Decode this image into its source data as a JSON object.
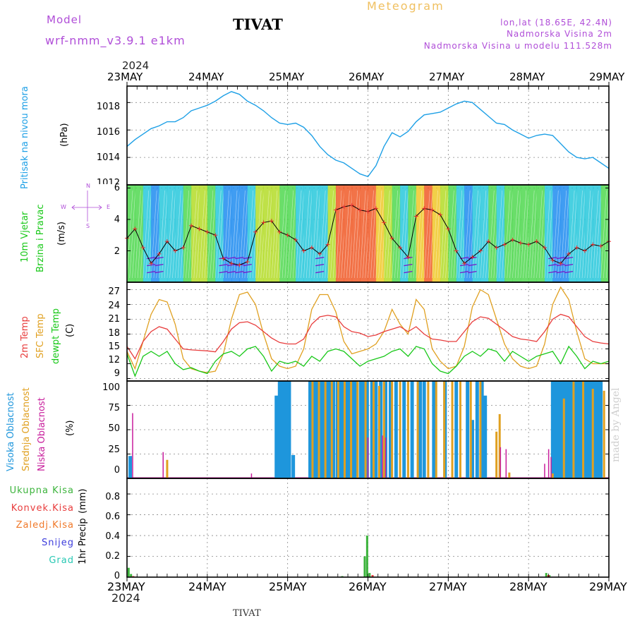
{
  "header": {
    "model_label": "Model",
    "model_name": "wrf-nmm_v3.9.1  e1km",
    "station": "TIVAT",
    "meteogram_label": "Meteogram",
    "coords": "lon,lat (18.65E, 42.4N)",
    "altitude": "Nadmorska Visina 2m",
    "model_altitude": "Nadmorska Visina u modelu 111.528m",
    "footer_station": "TIVAT",
    "watermark": "made by Angel",
    "year": "2024"
  },
  "colors": {
    "pressure": "#1ea0e6",
    "temp2m": "#e83c3c",
    "sfc": "#e0a020",
    "dewpt": "#18c818",
    "high_cloud": "#1e96dc",
    "mid_cloud": "#e0a020",
    "low_cloud": "#c81e9c",
    "total_precip": "#3cb43c",
    "conv_precip": "#e83c3c",
    "frz_precip": "#f07828",
    "snow": "#3c3cdc",
    "graupel": "#28c8b4",
    "wind_low": "#7814c8",
    "wind_mid": "#14c814",
    "wind_high": "#e82828"
  },
  "chart_data": [
    {
      "type": "line",
      "panel": "pressure",
      "ylabel": "Pritisak na nivou mora",
      "units": "(hPa)",
      "x_ticks": [
        "23MAY",
        "24MAY",
        "25MAY",
        "26MAY",
        "27MAY",
        "28MAY",
        "29MAY"
      ],
      "ylim": [
        1012,
        1019.2
      ],
      "y_ticks": [
        1012,
        1014,
        1016,
        1018
      ],
      "grid": true,
      "series": [
        {
          "x": [
            0,
            0.1,
            0.2,
            0.3,
            0.4,
            0.5,
            0.6,
            0.7,
            0.8,
            0.9,
            1.0,
            1.1,
            1.2,
            1.3,
            1.4,
            1.5,
            1.6,
            1.7,
            1.8,
            1.9,
            2.0,
            2.1,
            2.2,
            2.3,
            2.4,
            2.5,
            2.6,
            2.7,
            2.8,
            2.9,
            3.0,
            3.1,
            3.2,
            3.3,
            3.4,
            3.5,
            3.6,
            3.7,
            3.8,
            3.9,
            4.0,
            4.1,
            4.2,
            4.3,
            4.4,
            4.5,
            4.6,
            4.7,
            4.8,
            4.9,
            5.0,
            5.1,
            5.2,
            5.3,
            5.4,
            5.5,
            5.6,
            5.7,
            5.8,
            5.9,
            6.0
          ],
          "values": [
            1014.8,
            1015.3,
            1015.7,
            1016.1,
            1016.3,
            1016.6,
            1016.6,
            1016.9,
            1017.4,
            1017.6,
            1017.8,
            1018.1,
            1018.5,
            1018.8,
            1018.6,
            1018.1,
            1017.8,
            1017.4,
            1016.9,
            1016.5,
            1016.4,
            1016.5,
            1016.2,
            1015.6,
            1014.8,
            1014.2,
            1013.8,
            1013.6,
            1013.2,
            1012.8,
            1012.6,
            1013.4,
            1014.8,
            1015.8,
            1015.5,
            1015.9,
            1016.6,
            1017.1,
            1017.2,
            1017.3,
            1017.6,
            1017.9,
            1018.1,
            1018.0,
            1017.5,
            1017.0,
            1016.5,
            1016.4,
            1016.0,
            1015.7,
            1015.4,
            1015.6,
            1015.7,
            1015.6,
            1015.0,
            1014.4,
            1014.0,
            1013.9,
            1014.0,
            1013.6,
            1013.2
          ]
        }
      ]
    },
    {
      "type": "line",
      "panel": "wind",
      "ylabel_lines": [
        "10m Vjetar",
        "Brzina i Pravac"
      ],
      "units": "(m/s)",
      "compass": {
        "n": "N",
        "s": "S",
        "w": "W",
        "e": "E"
      },
      "ylim": [
        0,
        6.2
      ],
      "y_ticks": [
        2,
        4,
        6
      ],
      "grid": true,
      "series": [
        {
          "name": "mean",
          "x": [
            0,
            0.1,
            0.2,
            0.3,
            0.4,
            0.5,
            0.6,
            0.7,
            0.8,
            0.9,
            1.0,
            1.1,
            1.2,
            1.3,
            1.4,
            1.5,
            1.6,
            1.7,
            1.8,
            1.9,
            2.0,
            2.1,
            2.2,
            2.3,
            2.4,
            2.5,
            2.6,
            2.7,
            2.8,
            2.9,
            3.0,
            3.1,
            3.2,
            3.3,
            3.4,
            3.5,
            3.6,
            3.7,
            3.8,
            3.9,
            4.0,
            4.1,
            4.2,
            4.3,
            4.4,
            4.5,
            4.6,
            4.7,
            4.8,
            4.9,
            5.0,
            5.1,
            5.2,
            5.3,
            5.4,
            5.5,
            5.6,
            5.7,
            5.8,
            5.9,
            6.0
          ],
          "values": [
            2.8,
            3.4,
            2.2,
            1.2,
            1.8,
            2.6,
            2.0,
            2.2,
            3.6,
            3.4,
            3.2,
            3.0,
            1.5,
            1.2,
            1.1,
            1.3,
            3.2,
            3.8,
            3.9,
            3.2,
            3.0,
            2.7,
            2.0,
            2.2,
            1.8,
            2.4,
            4.6,
            4.8,
            4.9,
            4.6,
            4.5,
            4.7,
            3.8,
            2.8,
            2.2,
            1.6,
            4.2,
            4.7,
            4.6,
            4.3,
            3.4,
            2.0,
            1.2,
            1.6,
            2.0,
            2.6,
            2.2,
            2.4,
            2.7,
            2.5,
            2.4,
            2.6,
            2.2,
            1.4,
            1.2,
            1.8,
            2.2,
            2.0,
            2.4,
            2.3,
            2.6
          ]
        }
      ]
    },
    {
      "type": "line",
      "panel": "temperature",
      "ylabel_lines": [
        "2m Temp",
        "SFC Temp",
        "dewpt Temp"
      ],
      "units": "(C)",
      "ylim": [
        8.5,
        28.5
      ],
      "y_ticks": [
        9,
        12,
        15,
        18,
        21,
        24,
        27
      ],
      "grid": true,
      "series": [
        {
          "name": "2m Temp",
          "x": [
            0,
            0.1,
            0.2,
            0.3,
            0.4,
            0.5,
            0.6,
            0.7,
            0.8,
            0.9,
            1.0,
            1.1,
            1.2,
            1.3,
            1.4,
            1.5,
            1.6,
            1.7,
            1.8,
            1.9,
            2.0,
            2.1,
            2.2,
            2.3,
            2.4,
            2.5,
            2.6,
            2.7,
            2.8,
            2.9,
            3.0,
            3.1,
            3.2,
            3.3,
            3.4,
            3.5,
            3.6,
            3.7,
            3.8,
            3.9,
            4.0,
            4.1,
            4.2,
            4.3,
            4.4,
            4.5,
            4.6,
            4.7,
            4.8,
            4.9,
            5.0,
            5.1,
            5.2,
            5.3,
            5.4,
            5.5,
            5.6,
            5.7,
            5.8,
            5.9,
            6.0
          ],
          "values": [
            15.5,
            13.0,
            16.5,
            18.5,
            19.5,
            19.0,
            17.0,
            15.0,
            14.8,
            14.7,
            14.6,
            14.4,
            16.5,
            19.0,
            20.3,
            20.5,
            19.8,
            18.5,
            17.2,
            16.3,
            16.0,
            16.0,
            17.0,
            20.0,
            21.5,
            21.8,
            21.5,
            19.5,
            18.5,
            18.2,
            17.5,
            17.8,
            18.5,
            19.0,
            19.5,
            18.5,
            19.5,
            18.0,
            17.0,
            16.8,
            16.5,
            16.5,
            18.5,
            20.5,
            21.5,
            21.2,
            20.0,
            18.8,
            17.5,
            17.0,
            16.8,
            16.5,
            18.5,
            21.0,
            22.0,
            21.5,
            19.5,
            17.5,
            16.5,
            16.2,
            16.0
          ]
        },
        {
          "name": "SFC Temp",
          "x": [
            0,
            0.1,
            0.2,
            0.3,
            0.4,
            0.5,
            0.6,
            0.7,
            0.8,
            0.9,
            1.0,
            1.1,
            1.2,
            1.3,
            1.4,
            1.5,
            1.6,
            1.7,
            1.8,
            1.9,
            2.0,
            2.1,
            2.2,
            2.3,
            2.4,
            2.5,
            2.6,
            2.7,
            2.8,
            2.9,
            3.0,
            3.1,
            3.2,
            3.3,
            3.4,
            3.5,
            3.6,
            3.7,
            3.8,
            3.9,
            4.0,
            4.1,
            4.2,
            4.3,
            4.4,
            4.5,
            4.6,
            4.7,
            4.8,
            4.9,
            5.0,
            5.1,
            5.2,
            5.3,
            5.4,
            5.5,
            5.6,
            5.7,
            5.8,
            5.9,
            6.0
          ],
          "values": [
            14.5,
            11.0,
            16.5,
            22.0,
            25.0,
            24.5,
            20.0,
            13.0,
            11.0,
            10.5,
            10.2,
            10.5,
            14.0,
            21.0,
            26.0,
            26.5,
            24.0,
            18.0,
            13.0,
            11.5,
            11.0,
            11.5,
            15.0,
            23.0,
            26.0,
            26.0,
            22.5,
            16.5,
            14.0,
            14.5,
            15.0,
            16.0,
            18.5,
            23.0,
            20.0,
            18.0,
            25.0,
            23.0,
            15.0,
            12.5,
            11.0,
            11.5,
            15.5,
            23.5,
            27.0,
            26.0,
            21.0,
            16.0,
            13.0,
            11.5,
            11.0,
            11.5,
            16.0,
            24.0,
            27.5,
            25.0,
            18.5,
            13.0,
            12.0,
            12.0,
            12.0
          ]
        },
        {
          "name": "dewpt Temp",
          "x": [
            0,
            0.1,
            0.2,
            0.3,
            0.4,
            0.5,
            0.6,
            0.7,
            0.8,
            0.9,
            1.0,
            1.1,
            1.2,
            1.3,
            1.4,
            1.5,
            1.6,
            1.7,
            1.8,
            1.9,
            2.0,
            2.1,
            2.2,
            2.3,
            2.4,
            2.5,
            2.6,
            2.7,
            2.8,
            2.9,
            3.0,
            3.1,
            3.2,
            3.3,
            3.4,
            3.5,
            3.6,
            3.7,
            3.8,
            3.9,
            4.0,
            4.1,
            4.2,
            4.3,
            4.4,
            4.5,
            4.6,
            4.7,
            4.8,
            4.9,
            5.0,
            5.1,
            5.2,
            5.3,
            5.4,
            5.5,
            5.6,
            5.7,
            5.8,
            5.9,
            6.0
          ],
          "values": [
            14.0,
            9.5,
            13.5,
            14.5,
            13.5,
            14.5,
            12.0,
            10.8,
            11.2,
            10.5,
            10.0,
            12.5,
            14.0,
            14.5,
            13.5,
            15.0,
            15.5,
            13.5,
            10.5,
            12.5,
            12.0,
            12.5,
            11.5,
            13.5,
            12.5,
            14.5,
            15.0,
            14.5,
            13.0,
            11.5,
            12.5,
            13.0,
            13.5,
            14.5,
            15.0,
            13.5,
            15.5,
            15.0,
            12.0,
            10.5,
            10.0,
            11.5,
            13.5,
            14.5,
            13.5,
            15.0,
            14.5,
            12.5,
            14.5,
            13.5,
            12.5,
            13.5,
            14.0,
            14.5,
            12.0,
            15.5,
            13.5,
            11.0,
            12.5,
            12.0,
            12.5
          ]
        }
      ]
    },
    {
      "type": "bar",
      "panel": "clouds",
      "ylabel_lines": [
        "Visoka Oblacnost",
        "Srednja Oblacnost",
        "Niska Oblacnost"
      ],
      "units": "(%)",
      "ylim": [
        0,
        100
      ],
      "y_ticks": [
        0,
        25,
        50,
        75,
        100
      ],
      "grid": true,
      "series": [
        {
          "name": "Visoka Oblacnost",
          "x": [
            0.04,
            1.86,
            1.9,
            1.94,
            1.98,
            2.02,
            2.07,
            2.28,
            2.33,
            2.37,
            2.41,
            2.45,
            2.49,
            2.53,
            2.57,
            2.62,
            2.66,
            2.7,
            2.74,
            2.78,
            2.82,
            2.86,
            2.91,
            2.95,
            2.99,
            3.05,
            3.1,
            3.16,
            3.22,
            3.28,
            3.35,
            3.45,
            3.55,
            3.65,
            3.7,
            3.82,
            3.96,
            4.1,
            4.24,
            4.3,
            4.36,
            4.42,
            4.46,
            5.3,
            5.34,
            5.38,
            5.42,
            5.46,
            5.5,
            5.54,
            5.58,
            5.62,
            5.66,
            5.7,
            5.74,
            5.78,
            5.82,
            5.86,
            5.9
          ],
          "values": [
            23,
            85,
            100,
            100,
            100,
            100,
            24,
            100,
            100,
            100,
            100,
            100,
            100,
            100,
            100,
            100,
            100,
            100,
            100,
            100,
            100,
            100,
            100,
            100,
            100,
            100,
            100,
            100,
            100,
            100,
            100,
            100,
            100,
            100,
            100,
            100,
            100,
            100,
            100,
            60,
            100,
            100,
            85,
            100,
            100,
            100,
            100,
            100,
            100,
            100,
            100,
            100,
            100,
            100,
            100,
            100,
            100,
            100,
            100
          ]
        },
        {
          "name": "Srednja Oblacnost",
          "x": [
            0.5,
            2.31,
            2.39,
            2.47,
            2.55,
            2.63,
            2.71,
            2.79,
            2.87,
            2.97,
            3.07,
            3.14,
            3.2,
            3.3,
            3.4,
            3.5,
            3.62,
            3.75,
            3.85,
            3.95,
            4.05,
            4.15,
            4.28,
            4.4,
            4.6,
            4.64,
            4.76,
            5.3,
            5.44,
            5.56,
            5.68,
            5.8,
            5.94
          ],
          "values": [
            19,
            100,
            100,
            100,
            100,
            100,
            100,
            100,
            100,
            100,
            100,
            95,
            100,
            100,
            100,
            100,
            100,
            100,
            100,
            100,
            100,
            100,
            100,
            100,
            48,
            66,
            6,
            5,
            82,
            100,
            100,
            92,
            90
          ]
        },
        {
          "name": "Niska Oblacnost",
          "x": [
            0.07,
            0.45,
            1.55,
            3.0,
            3.18,
            3.22,
            4.65,
            4.72,
            5.2,
            5.25,
            5.28
          ],
          "values": [
            67,
            27,
            5,
            42,
            44,
            42,
            32,
            30,
            15,
            30,
            22
          ]
        }
      ]
    },
    {
      "type": "bar",
      "panel": "precip",
      "ylabel": "1hr Precip",
      "units": "(mm)",
      "legend": [
        "Ukupna Kisa",
        "Konvek.Kisa",
        "Zaledj.Kisa",
        "Snijeg",
        "Grad"
      ],
      "ylim": [
        0,
        0.95
      ],
      "y_ticks": [
        0,
        0.2,
        0.4,
        0.6,
        0.8
      ],
      "grid": true,
      "series": [
        {
          "name": "Ukupna Kisa",
          "x": [
            0.02,
            0.05,
            2.68,
            2.96,
            2.99,
            3.02,
            5.22,
            5.26
          ],
          "values": [
            0.09,
            0.03,
            0.01,
            0.2,
            0.4,
            0.04,
            0.04,
            0.02
          ]
        },
        {
          "name": "Konvek.Kisa",
          "x": [
            0.06,
            3.04,
            5.23
          ],
          "values": [
            0.01,
            0.02,
            0.02
          ]
        }
      ]
    }
  ]
}
